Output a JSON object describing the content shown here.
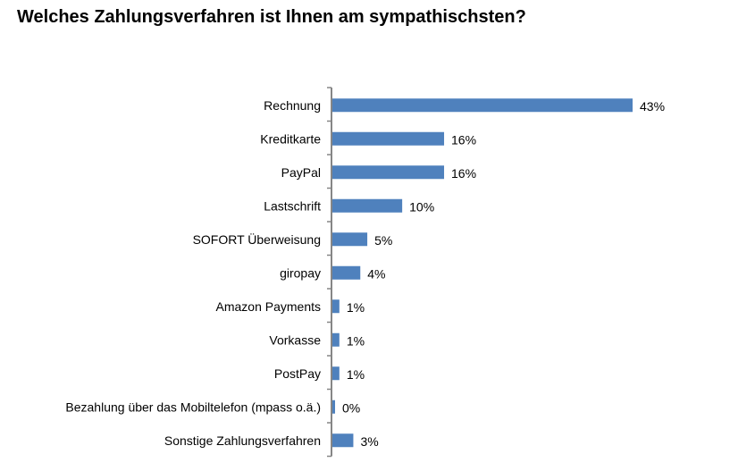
{
  "chart_data": {
    "type": "bar",
    "orientation": "horizontal",
    "title": "Welches Zahlungsverfahren ist Ihnen am sympathischsten?",
    "xlabel": "",
    "ylabel": "",
    "unit": "%",
    "xlim": [
      0,
      43
    ],
    "grid": false,
    "bar_color": "#4f81bd",
    "categories": [
      "Rechnung",
      "Kreditkarte",
      "PayPal",
      "Lastschrift",
      "SOFORT Überweisung",
      "giropay",
      "Amazon Payments",
      "Vorkasse",
      "PostPay",
      "Bezahlung über das Mobiltelefon (mpass o.ä.)",
      "Sonstige Zahlungsverfahren"
    ],
    "values": [
      43,
      16,
      16,
      10,
      5,
      4,
      1,
      1,
      1,
      0,
      3
    ],
    "labels": [
      "43%",
      "16%",
      "16%",
      "10%",
      "5%",
      "4%",
      "1%",
      "1%",
      "1%",
      "0%",
      "3%"
    ]
  }
}
